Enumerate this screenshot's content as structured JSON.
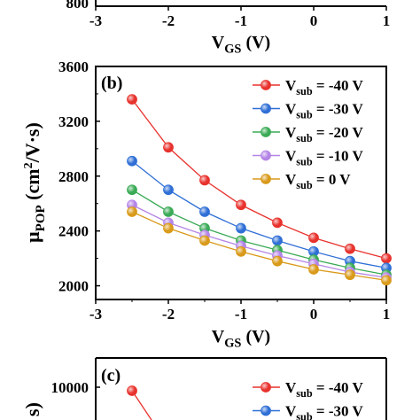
{
  "chart_data": [
    {
      "panel": "a",
      "type": "line",
      "partial": true,
      "visible_tick_labels": {
        "y": [
          "800"
        ],
        "x": [
          "-3",
          "-2",
          "-1",
          "0",
          "1"
        ]
      },
      "xlabel": {
        "main": "V",
        "sub": "GS",
        "unit": " (V)"
      },
      "xlim": [
        -3,
        1
      ]
    },
    {
      "panel": "b",
      "type": "line",
      "label": "(b)",
      "xlabel": {
        "main": "V",
        "sub": "GS",
        "unit": " (V)"
      },
      "ylabel": {
        "main": "μ",
        "sub": "POP",
        "unit_pre": " (cm",
        "sup": "2",
        "unit_post": "/V·s)"
      },
      "xlim": [
        -3,
        1
      ],
      "ylim": [
        1900,
        3600
      ],
      "xticks": [
        -3,
        -2,
        -1,
        0,
        1
      ],
      "yticks": [
        2000,
        2400,
        2800,
        3200,
        3600
      ],
      "grid": false,
      "legend": "top-right",
      "x": [
        -2.5,
        -2.0,
        -1.5,
        -1.0,
        -0.5,
        0.0,
        0.5,
        1.0
      ],
      "series": [
        {
          "name_main": "V",
          "name_sub": "sub",
          "name_tail": " = -40 V",
          "color": "#e8322d",
          "values": [
            3360,
            3010,
            2770,
            2590,
            2460,
            2350,
            2270,
            2200
          ]
        },
        {
          "name_main": "V",
          "name_sub": "sub",
          "name_tail": " = -30 V",
          "color": "#2f6fd6",
          "values": [
            2910,
            2700,
            2540,
            2420,
            2330,
            2250,
            2180,
            2130
          ]
        },
        {
          "name_main": "V",
          "name_sub": "sub",
          "name_tail": " = -20 V",
          "color": "#3aaa55",
          "values": [
            2700,
            2540,
            2420,
            2330,
            2260,
            2190,
            2130,
            2080
          ]
        },
        {
          "name_main": "V",
          "name_sub": "sub",
          "name_tail": " = -10 V",
          "color": "#b484e6",
          "values": [
            2590,
            2460,
            2370,
            2290,
            2220,
            2160,
            2100,
            2060
          ]
        },
        {
          "name_main": "V",
          "name_sub": "sub",
          "name_tail": " = 0 V",
          "color": "#d99a1a",
          "values": [
            2540,
            2420,
            2330,
            2250,
            2180,
            2120,
            2080,
            2040
          ]
        }
      ]
    },
    {
      "panel": "c",
      "type": "line",
      "partial": true,
      "label": "(c)",
      "ylabel_partial": "s)",
      "visible_tick_labels": {
        "y": [
          "10000"
        ]
      },
      "series": [
        {
          "name_main": "V",
          "name_sub": "sub",
          "name_tail": " = -40 V",
          "color": "#e8322d",
          "first_point": [
            -2.5,
            9900
          ]
        },
        {
          "name_main": "V",
          "name_sub": "sub",
          "name_tail": " = -30 V",
          "color": "#2f6fd6"
        }
      ]
    }
  ]
}
